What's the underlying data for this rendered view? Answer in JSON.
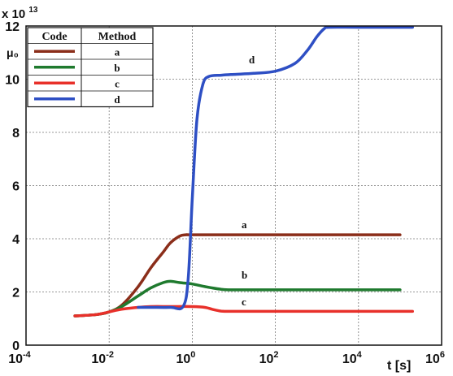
{
  "chart_data": {
    "type": "line",
    "y_axis_label": "μ₀",
    "y_multiplier_base": "x 10",
    "y_multiplier_exp": "13",
    "x_axis_label": "t [s]",
    "x_scale": "log",
    "xlim": [
      0.0001,
      1000000
    ],
    "ylim": [
      0,
      12
    ],
    "grid": true,
    "y_ticks": [
      "0",
      "2",
      "4",
      "6",
      "8",
      "10",
      "12"
    ],
    "x_ticks": [
      {
        "base": "10",
        "exp": "-4"
      },
      {
        "base": "10",
        "exp": "-2"
      },
      {
        "base": "10",
        "exp": "0"
      },
      {
        "base": "10",
        "exp": "2"
      },
      {
        "base": "10",
        "exp": "4"
      },
      {
        "base": "10",
        "exp": "6"
      }
    ],
    "legend": {
      "placement": "top-left",
      "header_code": "Code",
      "header_method": "Method",
      "entries": [
        {
          "method": "a",
          "color": "#8b2e1a"
        },
        {
          "method": "b",
          "color": "#1f7a2e"
        },
        {
          "method": "c",
          "color": "#e8302a"
        },
        {
          "method": "d",
          "color": "#2e4fc4"
        }
      ]
    },
    "series": [
      {
        "name": "a",
        "color": "#8b2e1a",
        "label_at": [
          2,
          4.4
        ],
        "points": [
          [
            0.0015,
            1.1
          ],
          [
            0.005,
            1.15
          ],
          [
            0.01,
            1.25
          ],
          [
            0.02,
            1.5
          ],
          [
            0.05,
            2.2
          ],
          [
            0.1,
            2.9
          ],
          [
            0.2,
            3.5
          ],
          [
            0.3,
            3.85
          ],
          [
            0.5,
            4.1
          ],
          [
            0.7,
            4.15
          ],
          [
            1,
            4.15
          ],
          [
            10,
            4.15
          ],
          [
            100,
            4.15
          ],
          [
            1000,
            4.15
          ],
          [
            10000,
            4.15
          ],
          [
            100000,
            4.15
          ]
        ]
      },
      {
        "name": "b",
        "color": "#1f7a2e",
        "label_at": [
          2,
          2.5
        ],
        "points": [
          [
            0.0015,
            1.1
          ],
          [
            0.005,
            1.15
          ],
          [
            0.01,
            1.25
          ],
          [
            0.02,
            1.45
          ],
          [
            0.05,
            1.85
          ],
          [
            0.1,
            2.15
          ],
          [
            0.2,
            2.35
          ],
          [
            0.3,
            2.4
          ],
          [
            0.5,
            2.35
          ],
          [
            1,
            2.3
          ],
          [
            2,
            2.2
          ],
          [
            5,
            2.1
          ],
          [
            10,
            2.08
          ],
          [
            100,
            2.08
          ],
          [
            1000,
            2.08
          ],
          [
            10000,
            2.08
          ],
          [
            100000,
            2.08
          ]
        ]
      },
      {
        "name": "c",
        "color": "#e8302a",
        "label_at": [
          2,
          1.5
        ],
        "points": [
          [
            0.0015,
            1.1
          ],
          [
            0.005,
            1.15
          ],
          [
            0.01,
            1.25
          ],
          [
            0.02,
            1.35
          ],
          [
            0.05,
            1.42
          ],
          [
            0.1,
            1.45
          ],
          [
            0.3,
            1.45
          ],
          [
            1,
            1.45
          ],
          [
            2,
            1.42
          ],
          [
            3,
            1.35
          ],
          [
            5,
            1.28
          ],
          [
            10,
            1.27
          ],
          [
            100,
            1.27
          ],
          [
            1000,
            1.27
          ],
          [
            10000,
            1.27
          ],
          [
            200000,
            1.27
          ]
        ]
      },
      {
        "name": "d",
        "color": "#2e4fc4",
        "label_at": [
          2,
          10.6
        ],
        "points": [
          [
            0.05,
            1.42
          ],
          [
            0.1,
            1.42
          ],
          [
            0.3,
            1.42
          ],
          [
            0.6,
            1.45
          ],
          [
            0.8,
            2.5
          ],
          [
            1,
            5.5
          ],
          [
            1.3,
            8.5
          ],
          [
            1.8,
            9.8
          ],
          [
            2.5,
            10.1
          ],
          [
            5,
            10.15
          ],
          [
            10,
            10.18
          ],
          [
            30,
            10.22
          ],
          [
            100,
            10.3
          ],
          [
            300,
            10.6
          ],
          [
            600,
            11.1
          ],
          [
            1000,
            11.6
          ],
          [
            1500,
            11.9
          ],
          [
            2000,
            11.95
          ],
          [
            10000,
            11.95
          ],
          [
            200000,
            11.95
          ]
        ]
      }
    ]
  }
}
